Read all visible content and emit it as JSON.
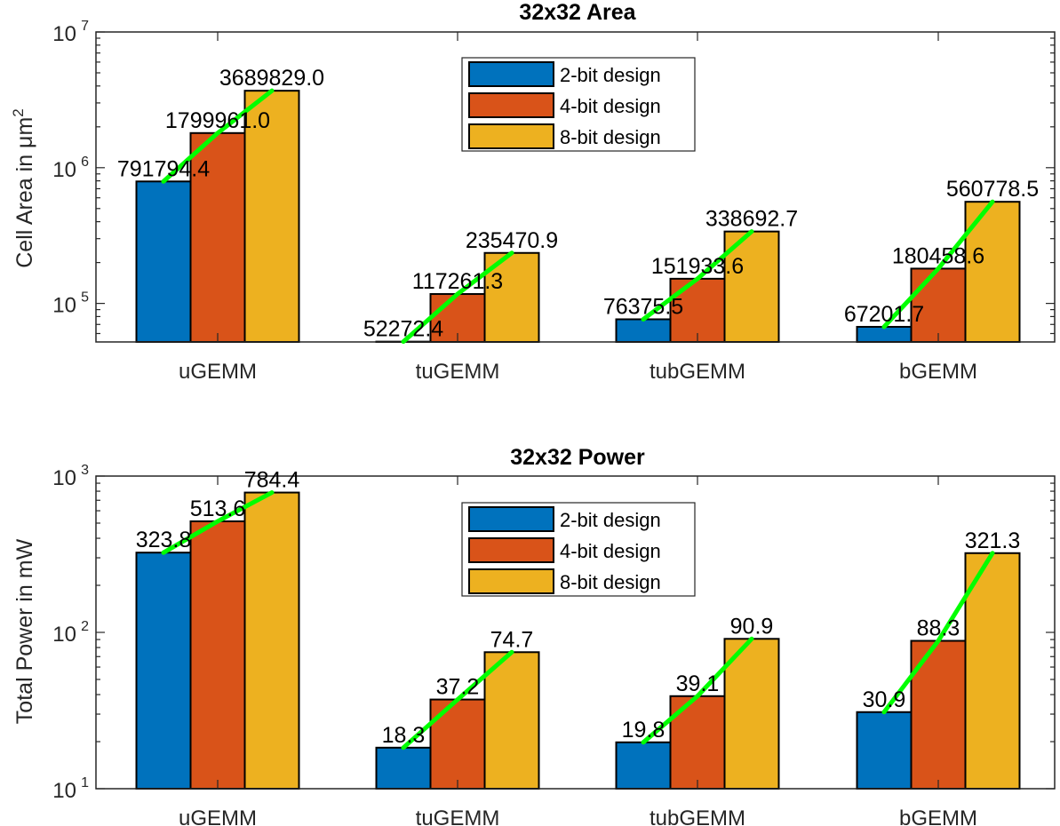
{
  "chart_data": [
    {
      "type": "bar",
      "title": "32x32 Area",
      "ylabel": "Cell Area in μm",
      "ylabel_sup": "2",
      "yscale": "log",
      "ylim": [
        52000,
        10000000
      ],
      "yticks": [
        {
          "value": 100000,
          "base": "10",
          "exp": "5"
        },
        {
          "value": 1000000,
          "base": "10",
          "exp": "6"
        },
        {
          "value": 10000000,
          "base": "10",
          "exp": "7"
        }
      ],
      "categories": [
        "uGEMM",
        "tuGEMM",
        "tubGEMM",
        "bGEMM"
      ],
      "series": [
        {
          "name": "2-bit design",
          "color": "#0072BD",
          "values": [
            791794.4,
            52272.4,
            76375.5,
            67201.7
          ],
          "labels": [
            "791794.4",
            "52272.4",
            "76375.5",
            "67201.7"
          ]
        },
        {
          "name": "4-bit design",
          "color": "#D95319",
          "values": [
            1799961.0,
            117261.3,
            151933.6,
            180458.6
          ],
          "labels": [
            "1799961.0",
            "117261.3",
            "151933.6",
            "180458.6"
          ]
        },
        {
          "name": "8-bit design",
          "color": "#EDB120",
          "values": [
            3689829.0,
            235470.9,
            338692.7,
            560778.5
          ],
          "labels": [
            "3689829.0",
            "235470.9",
            "338692.7",
            "560778.5"
          ]
        }
      ],
      "trend_color": "#00FF00",
      "legend_position": "top-center",
      "grid": false
    },
    {
      "type": "bar",
      "title": "32x32 Power",
      "ylabel": "Total Power in mW",
      "yscale": "log",
      "ylim": [
        10,
        1000
      ],
      "yticks": [
        {
          "value": 10,
          "base": "10",
          "exp": "1"
        },
        {
          "value": 100,
          "base": "10",
          "exp": "2"
        },
        {
          "value": 1000,
          "base": "10",
          "exp": "3"
        }
      ],
      "categories": [
        "uGEMM",
        "tuGEMM",
        "tubGEMM",
        "bGEMM"
      ],
      "series": [
        {
          "name": "2-bit design",
          "color": "#0072BD",
          "values": [
            323.8,
            18.3,
            19.8,
            30.9
          ],
          "labels": [
            "323.8",
            "18.3",
            "19.8",
            "30.9"
          ]
        },
        {
          "name": "4-bit design",
          "color": "#D95319",
          "values": [
            513.6,
            37.2,
            39.1,
            88.3
          ],
          "labels": [
            "513.6",
            "37.2",
            "39.1",
            "88.3"
          ]
        },
        {
          "name": "8-bit design",
          "color": "#EDB120",
          "values": [
            784.4,
            74.7,
            90.9,
            321.3
          ],
          "labels": [
            "784.4",
            "74.7",
            "90.9",
            "321.3"
          ]
        }
      ],
      "trend_color": "#00FF00",
      "legend_position": "top-center",
      "grid": false
    }
  ]
}
